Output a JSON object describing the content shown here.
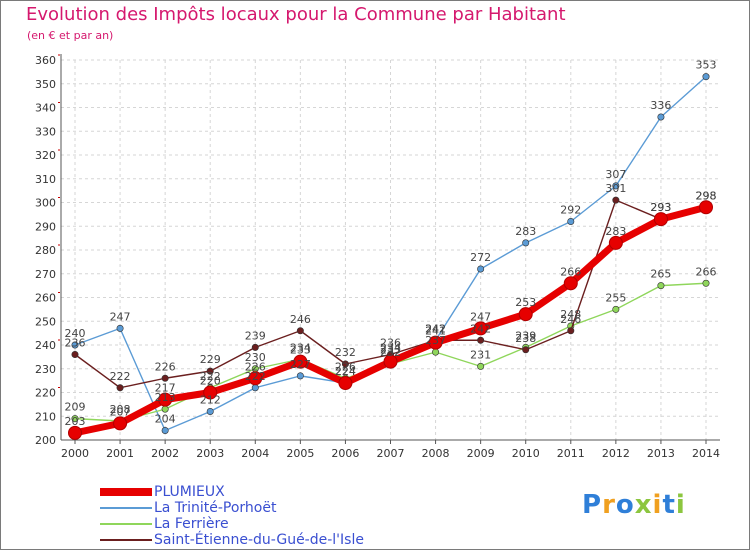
{
  "header": {
    "title": "Evolution des Impôts locaux pour la Commune par Habitant",
    "subtitle": "(en € et par an)"
  },
  "logo": {
    "text": "Proxiti",
    "letter_colors": [
      "#2f7fd8",
      "#f0a020",
      "#2f7fd8",
      "#8cc63f",
      "#f0a020",
      "#2f7fd8",
      "#8cc63f"
    ]
  },
  "chart_data": {
    "type": "line",
    "title": "Evolution des Impôts locaux pour la Commune par Habitant",
    "subtitle": "(en € et par an)",
    "x": [
      "2000",
      "2001",
      "2002",
      "2003",
      "2004",
      "2005",
      "2006",
      "2007",
      "2008",
      "2009",
      "2010",
      "2011",
      "2012",
      "2013",
      "2014"
    ],
    "ylim": [
      200,
      360
    ],
    "yticks": [
      200,
      210,
      220,
      230,
      240,
      250,
      260,
      270,
      280,
      290,
      300,
      310,
      320,
      330,
      340,
      350,
      360
    ],
    "grid": true,
    "legend_position": "bottom-left",
    "series": [
      {
        "name": "PLUMIEUX",
        "color": "#e60000",
        "values": [
          203,
          207,
          217,
          220,
          226,
          233,
          224,
          233,
          241,
          247,
          253,
          266,
          283,
          293,
          298
        ]
      },
      {
        "name": "La Trinité-Porhoët",
        "color": "#5b9bd5",
        "values": [
          240,
          247,
          204,
          212,
          222,
          227,
          224,
          234,
          242,
          272,
          283,
          292,
          307,
          336,
          353
        ]
      },
      {
        "name": "La Ferrière",
        "color": "#8fd65b",
        "values": [
          209,
          208,
          213,
          222,
          230,
          234,
          226,
          232,
          237,
          231,
          239,
          248,
          255,
          265,
          266
        ]
      },
      {
        "name": "Saint-Étienne-du-Gué-de-l'Isle",
        "color": "#6b1f1f",
        "values": [
          236,
          222,
          226,
          229,
          239,
          246,
          232,
          236,
          242,
          242,
          238,
          246,
          301,
          293,
          298
        ]
      }
    ]
  }
}
